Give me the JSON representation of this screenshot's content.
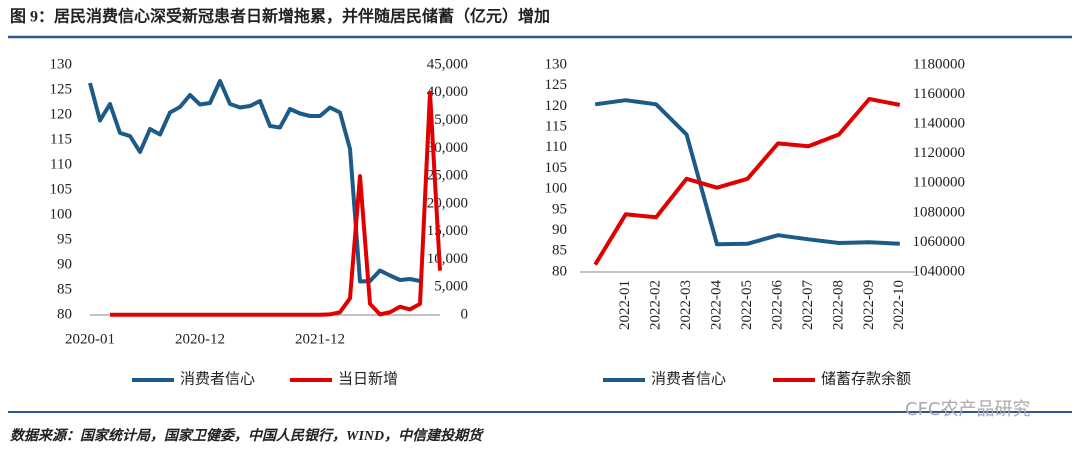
{
  "header": {
    "title": "图 9：居民消费信心深受新冠患者日新增拖累，并伴随居民储蓄（亿元）增加"
  },
  "footer": {
    "source": "数据来源：国家统计局，国家卫健委，中国人民银行，WIND，中信建投期货"
  },
  "watermark": "CFC农产品研究",
  "chart_data": [
    {
      "type": "line",
      "categories": [
        "2020-01",
        null,
        null,
        null,
        null,
        null,
        null,
        null,
        null,
        null,
        null,
        "2020-12",
        null,
        null,
        null,
        null,
        null,
        null,
        null,
        null,
        null,
        null,
        null,
        "2021-12",
        null,
        null,
        null,
        null,
        null,
        null,
        null,
        null,
        null,
        null,
        null,
        null
      ],
      "series": [
        {
          "name": "消费者信心",
          "color": "#1c5a87",
          "values": [
            126.4,
            118.9,
            122.2,
            116.4,
            115.8,
            112.6,
            117.2,
            116.1,
            120.5,
            121.6,
            124.0,
            122.1,
            122.4,
            126.8,
            122.2,
            121.5,
            121.8,
            122.8,
            117.8,
            117.5,
            121.2,
            120.3,
            119.8,
            119.8,
            121.5,
            120.5,
            113.2,
            86.7,
            86.8,
            88.9,
            87.9,
            87.0,
            87.2,
            86.8,
            null,
            null
          ]
        },
        {
          "name": "当日新增",
          "color": "#e00000",
          "axis": "y2",
          "values": [
            null,
            null,
            50,
            50,
            50,
            50,
            50,
            50,
            50,
            50,
            50,
            50,
            50,
            50,
            50,
            50,
            50,
            50,
            50,
            50,
            50,
            50,
            50,
            50,
            100,
            500,
            3000,
            25000,
            2000,
            100,
            500,
            1500,
            1000,
            2000,
            40000,
            8000
          ]
        }
      ],
      "ylim": [
        80,
        130
      ],
      "yticks": [
        80,
        85,
        90,
        95,
        100,
        105,
        110,
        115,
        120,
        125,
        130
      ],
      "y2lim": [
        0,
        45000
      ],
      "y2ticks": [
        0,
        {
          "value": 5000,
          "label": "5,000"
        },
        {
          "value": 10000,
          "label": "10,000"
        },
        {
          "value": 15000,
          "label": "15,000"
        },
        {
          "value": 20000,
          "label": "20,000"
        },
        {
          "value": 25000,
          "label": "25,000"
        },
        {
          "value": 30000,
          "label": "30,000"
        },
        {
          "value": 35000,
          "label": "35,000"
        },
        {
          "value": 40000,
          "label": "40,000"
        },
        {
          "value": 45000,
          "label": "45,000"
        }
      ],
      "legend": "bottom",
      "grid": false
    },
    {
      "type": "line",
      "categories": [
        null,
        "2022-01",
        "2022-02",
        "2022-03",
        "2022-04",
        "2022-05",
        "2022-06",
        "2022-07",
        "2022-08",
        "2022-09",
        "2022-10"
      ],
      "series": [
        {
          "name": "消费者信心",
          "color": "#1c5a87",
          "values": [
            120.5,
            121.5,
            120.5,
            113.2,
            86.7,
            86.8,
            88.9,
            87.9,
            87.0,
            87.2,
            86.8
          ]
        },
        {
          "name": "储蓄存款余额",
          "color": "#e00000",
          "axis": "y2",
          "values": [
            1045000,
            1079000,
            1077000,
            1103000,
            1097000,
            1103000,
            1127000,
            1125000,
            1133000,
            1157000,
            1153000
          ]
        }
      ],
      "ylim": [
        80,
        130
      ],
      "yticks": [
        80,
        85,
        90,
        95,
        100,
        105,
        110,
        115,
        120,
        125,
        130
      ],
      "y2lim": [
        1040000,
        1180000
      ],
      "y2ticks": [
        1040000,
        1060000,
        1080000,
        1100000,
        1120000,
        1140000,
        1160000,
        1180000
      ],
      "legend": "bottom",
      "grid": false,
      "rotate_x_labels": true
    }
  ]
}
